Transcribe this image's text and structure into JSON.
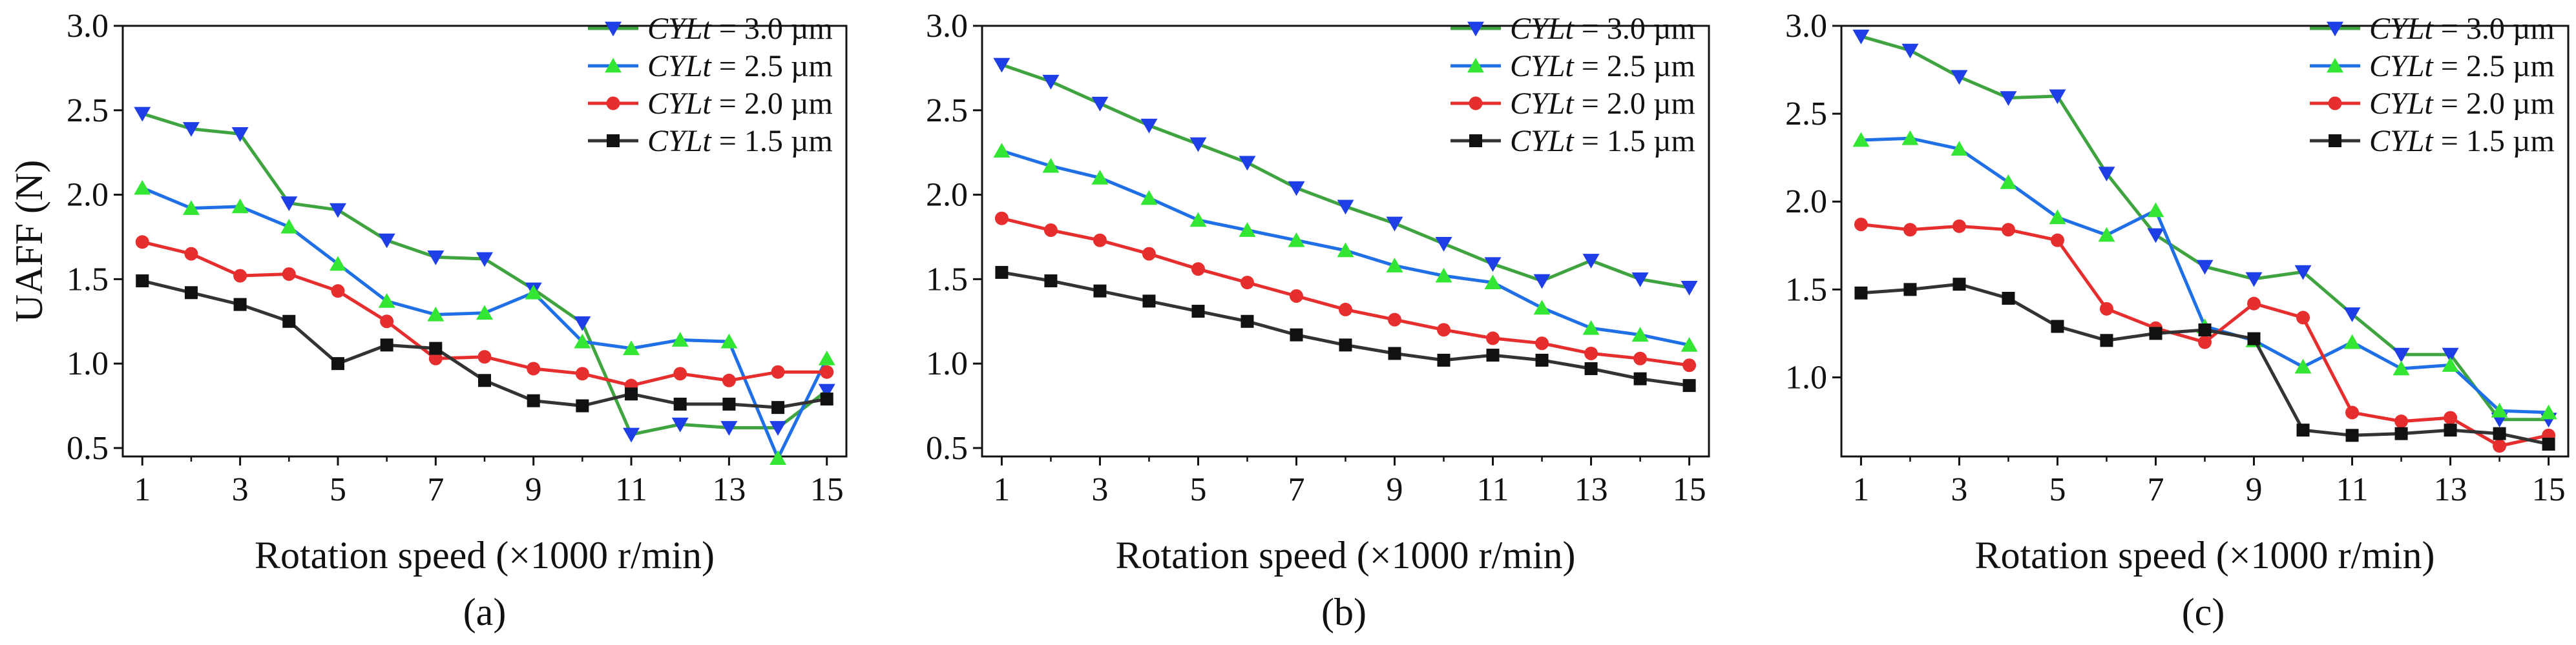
{
  "figure": {
    "panels": [
      "(a)",
      "(b)",
      "(c)"
    ]
  },
  "legend_entries": [
    {
      "prefix": "CYLt",
      "suffix": " = 3.0 µm"
    },
    {
      "prefix": "CYLt",
      "suffix": " = 2.5 µm"
    },
    {
      "prefix": "CYLt",
      "suffix": " = 2.0 µm"
    },
    {
      "prefix": "CYLt",
      "suffix": " = 1.5 µm"
    }
  ],
  "series_styles": [
    {
      "line_color": "#3fa33f",
      "marker": "triangle-down",
      "marker_color": "#1f3fe6"
    },
    {
      "line_color": "#1f6fe6",
      "marker": "triangle-up",
      "marker_color": "#33e633"
    },
    {
      "line_color": "#e62e2e",
      "marker": "circle",
      "marker_color": "#e62e2e"
    },
    {
      "line_color": "#333333",
      "marker": "square",
      "marker_color": "#111111"
    }
  ],
  "chart_data": [
    {
      "type": "line",
      "caption": "(a)",
      "xlabel": "Rotation speed (×1000 r/min)",
      "ylabel": "UAFF (N)",
      "xlim": [
        0.6,
        15.4
      ],
      "ylim": [
        0.45,
        3.0
      ],
      "xticks": [
        1,
        3,
        5,
        7,
        9,
        11,
        13,
        15
      ],
      "yticks": [
        0.5,
        1.0,
        1.5,
        2.0,
        2.5,
        3.0
      ],
      "ytick_labels": [
        "0.5",
        "1.0",
        "1.5",
        "2.0",
        "2.5",
        "3.0"
      ],
      "grid": false,
      "legend_position": "top-right",
      "x": [
        1,
        2,
        3,
        4,
        5,
        6,
        7,
        8,
        9,
        10,
        11,
        12,
        13,
        14,
        15
      ],
      "series": [
        {
          "values": [
            2.48,
            2.39,
            2.36,
            1.95,
            1.91,
            1.73,
            1.63,
            1.62,
            1.44,
            1.24,
            0.58,
            0.64,
            0.62,
            0.62,
            0.84
          ]
        },
        {
          "values": [
            2.04,
            1.92,
            1.93,
            1.81,
            1.59,
            1.37,
            1.29,
            1.3,
            1.42,
            1.13,
            1.09,
            1.14,
            1.13,
            0.44,
            1.03
          ]
        },
        {
          "values": [
            1.72,
            1.65,
            1.52,
            1.53,
            1.43,
            1.25,
            1.03,
            1.04,
            0.97,
            0.94,
            0.87,
            0.94,
            0.9,
            0.95,
            0.95
          ]
        },
        {
          "values": [
            1.49,
            1.42,
            1.35,
            1.25,
            1.0,
            1.11,
            1.09,
            0.9,
            0.78,
            0.75,
            0.82,
            0.76,
            0.76,
            0.74,
            0.79
          ]
        }
      ]
    },
    {
      "type": "line",
      "caption": "(b)",
      "xlabel": "Rotation speed (×1000 r/min)",
      "ylabel": "",
      "xlim": [
        0.6,
        15.4
      ],
      "ylim": [
        0.45,
        3.0
      ],
      "xticks": [
        1,
        3,
        5,
        7,
        9,
        11,
        13,
        15
      ],
      "yticks": [
        0.5,
        1.0,
        1.5,
        2.0,
        2.5,
        3.0
      ],
      "ytick_labels": [
        "0.5",
        "1.0",
        "1.5",
        "2.0",
        "2.5",
        "3.0"
      ],
      "grid": false,
      "legend_position": "top-right",
      "x": [
        1,
        2,
        3,
        4,
        5,
        6,
        7,
        8,
        9,
        10,
        11,
        12,
        13,
        14,
        15
      ],
      "series": [
        {
          "values": [
            2.77,
            2.67,
            2.54,
            2.41,
            2.3,
            2.19,
            2.04,
            1.93,
            1.83,
            1.71,
            1.59,
            1.49,
            1.61,
            1.5,
            1.45
          ]
        },
        {
          "values": [
            2.26,
            2.17,
            2.1,
            1.98,
            1.85,
            1.79,
            1.73,
            1.67,
            1.58,
            1.52,
            1.48,
            1.33,
            1.21,
            1.17,
            1.11
          ]
        },
        {
          "values": [
            1.86,
            1.79,
            1.73,
            1.65,
            1.56,
            1.48,
            1.4,
            1.32,
            1.26,
            1.2,
            1.15,
            1.12,
            1.06,
            1.03,
            0.99
          ]
        },
        {
          "values": [
            1.54,
            1.49,
            1.43,
            1.37,
            1.31,
            1.25,
            1.17,
            1.11,
            1.06,
            1.02,
            1.05,
            1.02,
            0.97,
            0.91,
            0.87
          ]
        }
      ]
    },
    {
      "type": "line",
      "caption": "(c)",
      "xlabel": "Rotation speed (×1000 r/min)",
      "ylabel": "",
      "xlim": [
        0.6,
        15.4
      ],
      "ylim": [
        0.55,
        3.0
      ],
      "xticks": [
        1,
        3,
        5,
        7,
        9,
        11,
        13,
        15
      ],
      "yticks": [
        1.0,
        1.5,
        2.0,
        2.5,
        3.0
      ],
      "ytick_labels": [
        "1.0",
        "1.5",
        "2.0",
        "2.5",
        "3.0"
      ],
      "grid": false,
      "legend_position": "top-right",
      "x": [
        1,
        2,
        3,
        4,
        5,
        6,
        7,
        8,
        9,
        10,
        11,
        12,
        13,
        14,
        15
      ],
      "series": [
        {
          "values": [
            2.94,
            2.86,
            2.71,
            2.59,
            2.6,
            2.16,
            1.81,
            1.63,
            1.56,
            1.6,
            1.36,
            1.13,
            1.13,
            0.76,
            0.76
          ]
        },
        {
          "values": [
            2.35,
            2.36,
            2.3,
            2.11,
            1.91,
            1.81,
            1.95,
            1.29,
            1.21,
            1.06,
            1.2,
            1.05,
            1.07,
            0.81,
            0.8
          ]
        },
        {
          "values": [
            1.87,
            1.84,
            1.86,
            1.84,
            1.78,
            1.39,
            1.28,
            1.2,
            1.42,
            1.34,
            0.8,
            0.75,
            0.77,
            0.61,
            0.67
          ]
        },
        {
          "values": [
            1.48,
            1.5,
            1.53,
            1.45,
            1.29,
            1.21,
            1.25,
            1.27,
            1.22,
            0.7,
            0.67,
            0.68,
            0.7,
            0.68,
            0.62
          ]
        }
      ]
    }
  ]
}
